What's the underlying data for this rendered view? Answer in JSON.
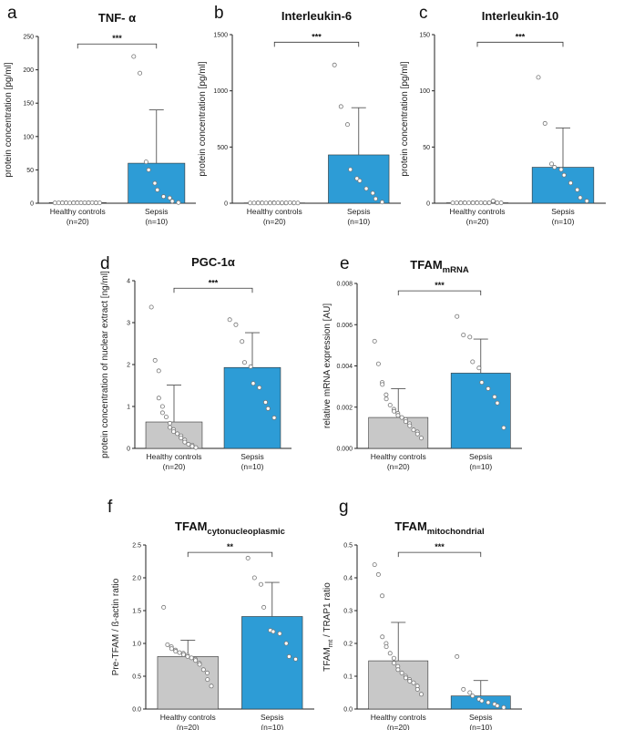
{
  "colors": {
    "control": "#c8c8c8",
    "sepsis": "#2d9cd6",
    "axis": "#222222",
    "error": "#555555",
    "point": "#777777"
  },
  "chart_data": [
    {
      "letter": "a",
      "type": "bar",
      "title": "TNF- α",
      "title_sub": "",
      "ylabel": "protein concentration [pg/ml]",
      "ylim": [
        0,
        250
      ],
      "yticks": [
        "0",
        "50",
        "100",
        "150",
        "200",
        "250"
      ],
      "categories": [
        {
          "name": "Healthy controls",
          "n": "(n=20)"
        },
        {
          "name": "Sepsis",
          "n": "(n=10)"
        }
      ],
      "values": [
        1,
        60
      ],
      "errors": [
        0.5,
        80
      ],
      "points": [
        [
          0.5,
          0.5,
          0.6,
          0.5,
          0.7,
          0.5,
          0.4,
          0.6,
          0.5,
          0.8,
          0.5,
          0.6,
          0.5,
          0.7,
          0.5,
          0.6,
          0.9,
          0.5,
          0.6,
          0.5
        ],
        [
          220,
          195,
          62,
          50,
          30,
          20,
          10,
          8,
          3,
          1
        ]
      ],
      "sig": "***"
    },
    {
      "letter": "b",
      "type": "bar",
      "title": "Interleukin-6",
      "title_sub": "",
      "ylabel": "protein concentration [pg/ml]",
      "ylim": [
        0,
        1500
      ],
      "yticks": [
        "0",
        "500",
        "1000",
        "1500"
      ],
      "categories": [
        {
          "name": "Healthy controls",
          "n": "(n=20)"
        },
        {
          "name": "Sepsis",
          "n": "(n=10)"
        }
      ],
      "values": [
        3,
        430
      ],
      "errors": [
        2,
        420
      ],
      "points": [
        [
          2,
          2,
          3,
          2,
          3,
          2,
          2,
          3,
          2,
          4,
          2,
          3,
          2,
          3,
          2,
          3,
          5,
          2,
          3,
          2
        ],
        [
          1230,
          860,
          700,
          300,
          220,
          200,
          130,
          90,
          40,
          10
        ]
      ],
      "sig": "***"
    },
    {
      "letter": "c",
      "type": "bar",
      "title": "Interleukin-10",
      "title_sub": "",
      "ylabel": "protein concentration [pg/ml]",
      "ylim": [
        0,
        150
      ],
      "yticks": [
        "0",
        "50",
        "100",
        "150"
      ],
      "categories": [
        {
          "name": "Healthy controls",
          "n": "(n=20)"
        },
        {
          "name": "Sepsis",
          "n": "(n=10)"
        }
      ],
      "values": [
        0.4,
        32
      ],
      "errors": [
        0.5,
        35
      ],
      "points": [
        [
          0.3,
          0.3,
          0.4,
          0.3,
          0.4,
          0.3,
          0.3,
          0.4,
          0.3,
          0.5,
          0.3,
          0.4,
          0.3,
          0.4,
          0.3,
          0.4,
          2,
          0.3,
          0.4,
          0.3
        ],
        [
          112,
          71,
          35,
          32,
          30,
          25,
          18,
          12,
          5,
          2
        ]
      ],
      "sig": "***"
    },
    {
      "letter": "d",
      "type": "bar",
      "title": "PGC-1α",
      "title_sub": "",
      "ylabel": "protein concentration of nuclear extract [ng/ml]",
      "ylim": [
        0,
        4
      ],
      "yticks": [
        "0",
        "1",
        "2",
        "3",
        "4"
      ],
      "categories": [
        {
          "name": "Healthy controls",
          "n": "(n=20)"
        },
        {
          "name": "Sepsis",
          "n": "(n=10)"
        }
      ],
      "values": [
        0.63,
        1.93
      ],
      "errors": [
        0.88,
        0.83
      ],
      "points": [
        [
          3.37,
          2.1,
          1.85,
          1.2,
          1.0,
          0.85,
          0.75,
          0.6,
          0.5,
          0.45,
          0.4,
          0.35,
          0.3,
          0.25,
          0.2,
          0.15,
          0.1,
          0.08,
          0.05,
          0.02
        ],
        [
          3.07,
          2.95,
          2.55,
          2.05,
          1.95,
          1.55,
          1.45,
          1.1,
          0.95,
          0.73
        ]
      ],
      "sig": "***"
    },
    {
      "letter": "e",
      "type": "bar",
      "title": "TFAM",
      "title_sub": "mRNA",
      "ylabel": "relative mRNA expression [AU]",
      "ylim": [
        0,
        0.008
      ],
      "yticks": [
        "0.000",
        "0.002",
        "0.004",
        "0.006",
        "0.008"
      ],
      "categories": [
        {
          "name": "Healthy controls",
          "n": "(n=20)"
        },
        {
          "name": "Sepsis",
          "n": "(n=10)"
        }
      ],
      "values": [
        0.0015,
        0.00365
      ],
      "errors": [
        0.0014,
        0.00165
      ],
      "points": [
        [
          0.0052,
          0.0041,
          0.0032,
          0.0031,
          0.0026,
          0.0024,
          0.0021,
          0.0019,
          0.0018,
          0.0017,
          0.0016,
          0.0015,
          0.0014,
          0.0013,
          0.0012,
          0.0011,
          0.0009,
          0.0008,
          0.0007,
          0.0005
        ],
        [
          0.0064,
          0.0055,
          0.0054,
          0.0042,
          0.0039,
          0.0032,
          0.0029,
          0.0025,
          0.0022,
          0.001
        ]
      ],
      "sig": "***"
    },
    {
      "letter": "f",
      "type": "bar",
      "title": "TFAM",
      "title_sub": "cytonucleoplasmic",
      "ylabel": "Pre-TFAM / ß-actin ratio",
      "ylim": [
        0,
        2.5
      ],
      "yticks": [
        "0.0",
        "0.5",
        "1.0",
        "1.5",
        "2.0",
        "2.5"
      ],
      "categories": [
        {
          "name": "Healthy controls",
          "n": "(n=20)"
        },
        {
          "name": "Sepsis",
          "n": "(n=10)"
        }
      ],
      "values": [
        0.8,
        1.41
      ],
      "errors": [
        0.25,
        0.52
      ],
      "points": [
        [
          1.55,
          0.98,
          0.95,
          0.92,
          0.9,
          0.88,
          0.86,
          0.85,
          0.83,
          0.82,
          0.8,
          0.78,
          0.76,
          0.74,
          0.7,
          0.68,
          0.6,
          0.55,
          0.45,
          0.35
        ],
        [
          2.3,
          2.0,
          1.9,
          1.55,
          1.2,
          1.18,
          1.15,
          1.0,
          0.8,
          0.76
        ]
      ],
      "sig": "**"
    },
    {
      "letter": "g",
      "type": "bar",
      "title": "TFAM",
      "title_sub": "mitochondrial",
      "ylabel": "TFAM",
      "ylabel_sub": "mt",
      "ylabel_rest": " / TRAP1 ratio",
      "ylim": [
        0,
        0.5
      ],
      "yticks": [
        "0.0",
        "0.1",
        "0.2",
        "0.3",
        "0.4",
        "0.5"
      ],
      "categories": [
        {
          "name": "Healthy controls",
          "n": "(n=20)"
        },
        {
          "name": "Sepsis",
          "n": "(n=10)"
        }
      ],
      "values": [
        0.147,
        0.04
      ],
      "errors": [
        0.117,
        0.047
      ],
      "points": [
        [
          0.44,
          0.41,
          0.345,
          0.22,
          0.2,
          0.19,
          0.17,
          0.155,
          0.14,
          0.13,
          0.12,
          0.11,
          0.1,
          0.095,
          0.09,
          0.085,
          0.08,
          0.07,
          0.06,
          0.045
        ],
        [
          0.16,
          0.06,
          0.05,
          0.04,
          0.03,
          0.025,
          0.02,
          0.015,
          0.01,
          0.005
        ]
      ],
      "sig": "***"
    }
  ]
}
